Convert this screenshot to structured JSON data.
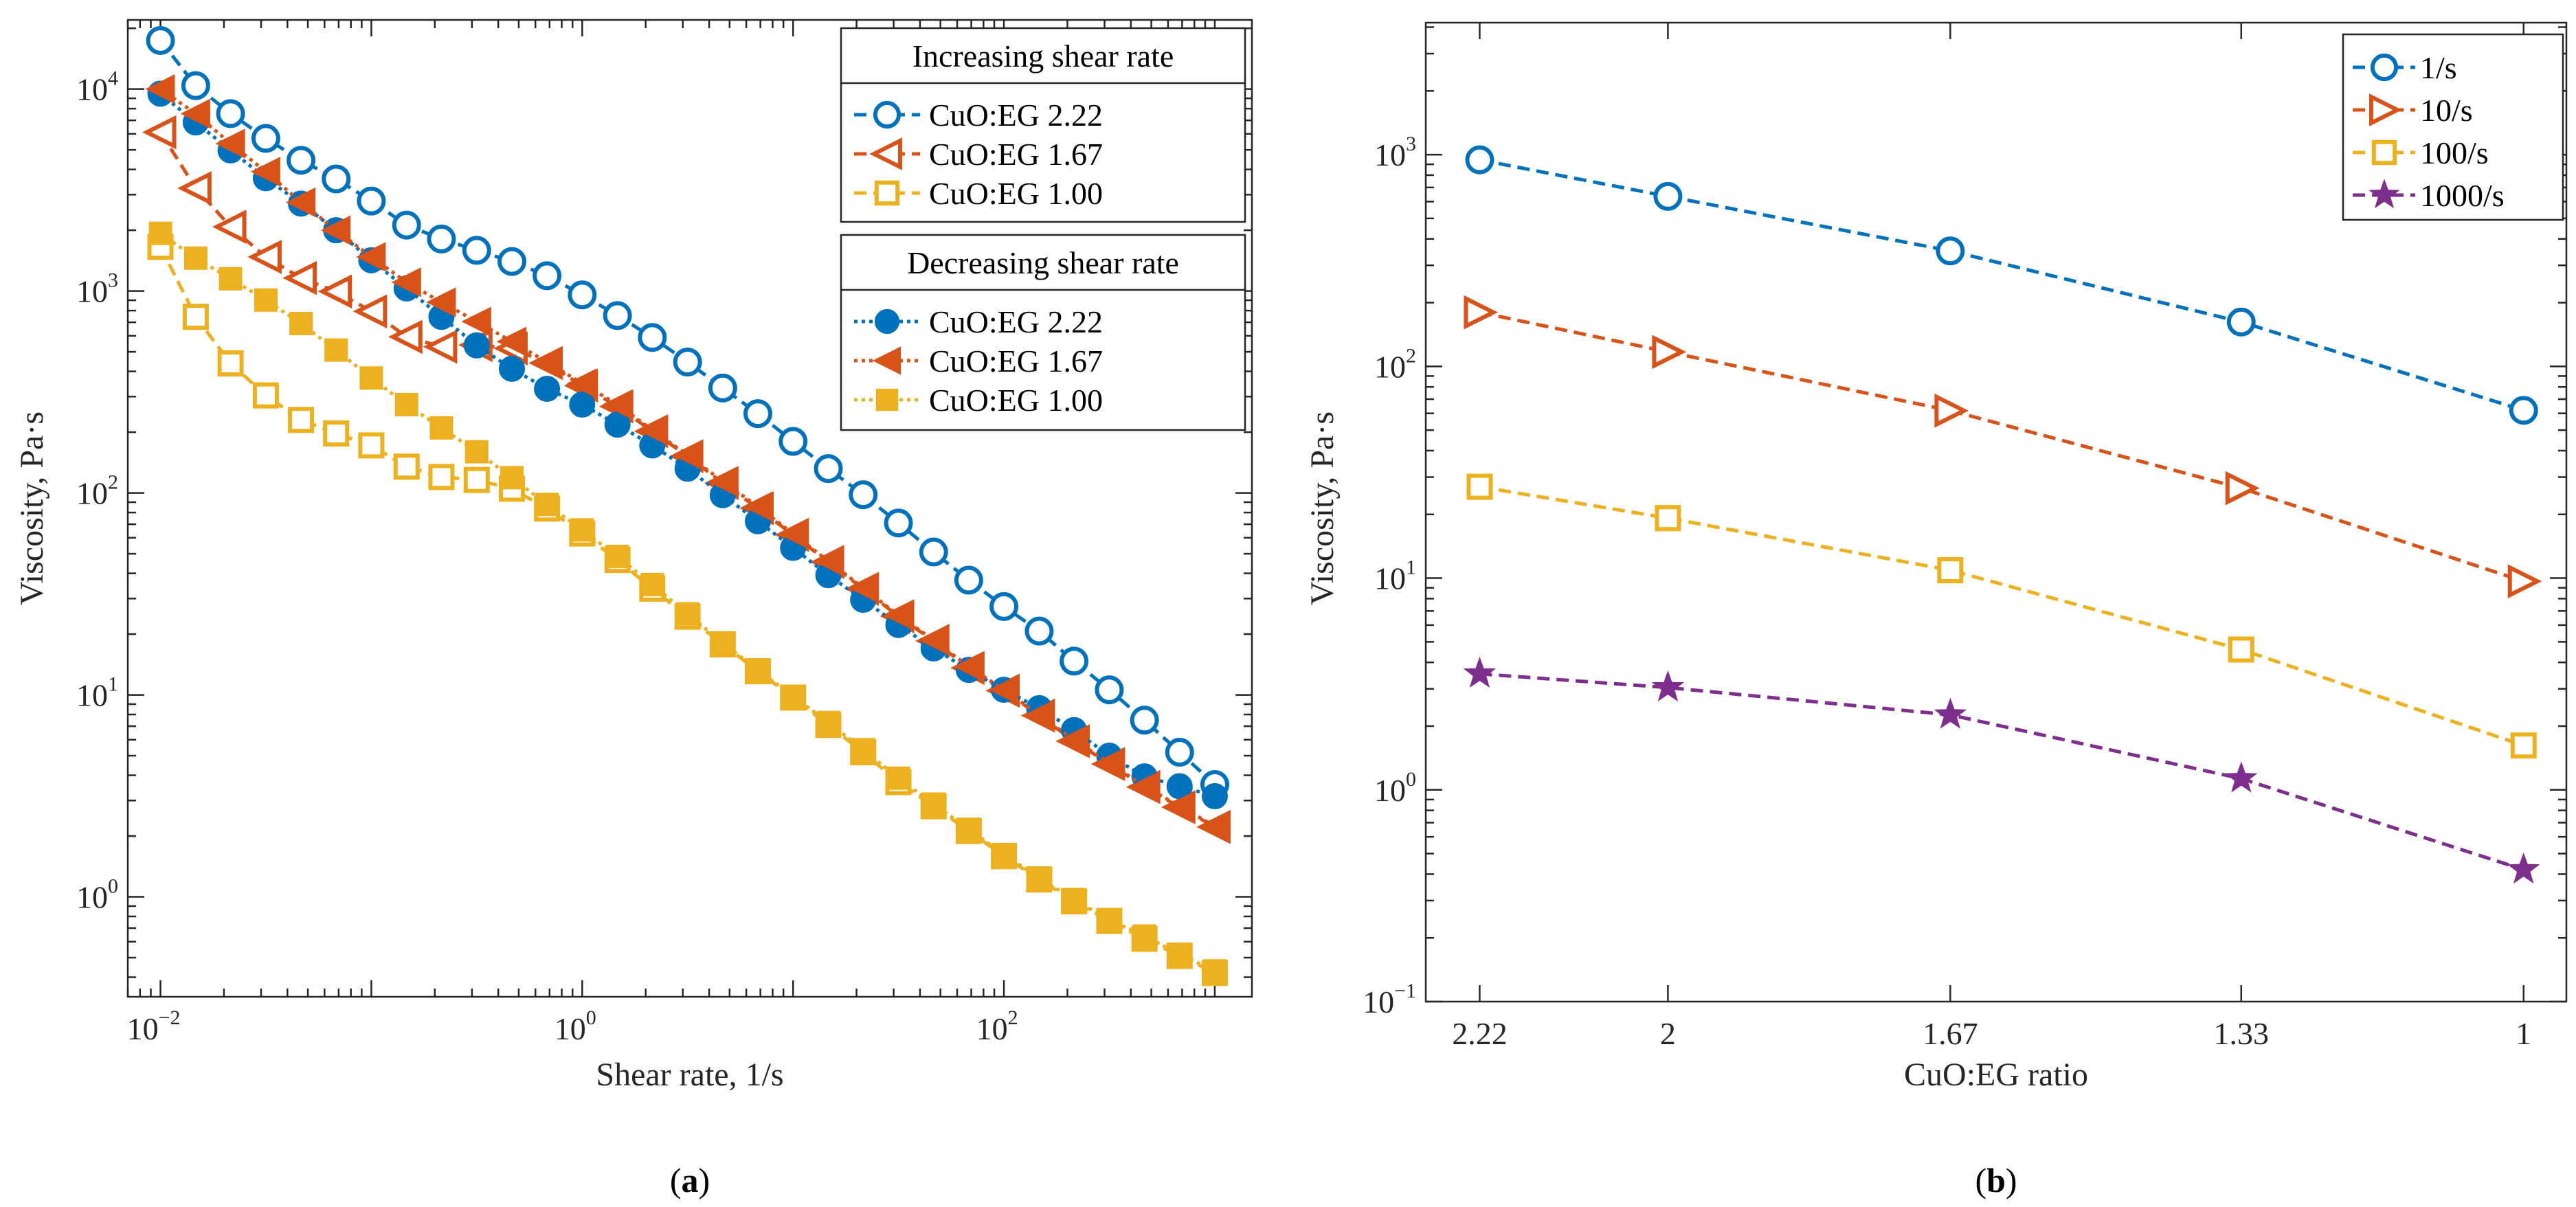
{
  "colors": {
    "blue": "#0072BD",
    "orange": "#D95319",
    "yellow": "#EDB120",
    "purple": "#7E2F8E"
  },
  "chart_data": [
    {
      "type": "line",
      "panel_label": "(a)",
      "panel_letter": "a",
      "xlabel": "Shear rate, 1/s",
      "ylabel": "Viscosity, Pa·s",
      "xscale": "log",
      "yscale": "log",
      "xlim": [
        0.007,
        1500
      ],
      "ylim": [
        0.32,
        22000
      ],
      "xticks": [
        {
          "base": "10",
          "exp": "−2",
          "v": 0.01
        },
        {
          "base": "10",
          "exp": "0",
          "v": 1
        },
        {
          "base": "10",
          "exp": "2",
          "v": 100
        }
      ],
      "yticks": [
        {
          "base": "10",
          "exp": "0",
          "v": 1
        },
        {
          "base": "10",
          "exp": "1",
          "v": 10
        },
        {
          "base": "10",
          "exp": "2",
          "v": 100
        },
        {
          "base": "10",
          "exp": "3",
          "v": 1000
        },
        {
          "base": "10",
          "exp": "4",
          "v": 10000
        }
      ],
      "x": [
        0.01,
        0.0147,
        0.0215,
        0.0316,
        0.0464,
        0.0681,
        0.1,
        0.147,
        0.215,
        0.316,
        0.464,
        0.681,
        1,
        1.47,
        2.15,
        3.16,
        4.64,
        6.81,
        10,
        14.7,
        21.5,
        31.6,
        46.4,
        68.1,
        100,
        147,
        215,
        316,
        464,
        681,
        1000
      ],
      "legend_groups": [
        {
          "title": "Increasing shear rate",
          "series_idx": [
            0,
            1,
            2
          ]
        },
        {
          "title": "Decreasing shear rate",
          "series_idx": [
            3,
            4,
            5
          ]
        }
      ],
      "series": [
        {
          "name": "CuO:EG 2.22",
          "color": "blue",
          "marker": "circle-open",
          "line": "dashed",
          "values": [
            17400,
            10400,
            7560,
            5700,
            4440,
            3590,
            2790,
            2120,
            1810,
            1590,
            1400,
            1190,
            957,
            756,
            589,
            445,
            331,
            247,
            180,
            132,
            98,
            71,
            51,
            37,
            27.4,
            20.7,
            14.7,
            10.6,
            7.5,
            5.2,
            3.6
          ]
        },
        {
          "name": "CuO:EG 1.67",
          "color": "orange",
          "marker": "triangle-left-open",
          "line": "dashed",
          "values": [
            6110,
            3230,
            2080,
            1475,
            1160,
            995,
            793,
            593,
            530,
            540,
            520,
            440,
            340,
            268,
            202,
            152,
            112,
            84,
            62,
            45.5,
            33.5,
            24.5,
            18.5,
            13.6,
            10.5,
            7.9,
            5.9,
            4.55,
            3.5,
            2.78,
            2.22
          ]
        },
        {
          "name": "CuO:EG 1.00",
          "color": "yellow",
          "marker": "square-open",
          "line": "dashed",
          "values": [
            1655,
            745,
            438,
            304,
            230,
            197,
            172,
            135,
            120,
            116,
            105,
            83.7,
            63,
            46.6,
            33.6,
            24.4,
            17.8,
            13.1,
            9.7,
            7.1,
            5.2,
            3.7,
            2.81,
            2.12,
            1.59,
            1.22,
            0.95,
            0.76,
            0.62,
            0.51,
            0.42
          ]
        },
        {
          "name": "CuO:EG 2.22",
          "color": "blue",
          "marker": "circle-filled",
          "line": "dotted",
          "values": [
            9490,
            6840,
            4970,
            3620,
            2710,
            2000,
            1420,
            1030,
            745,
            538,
            412,
            328,
            274,
            218,
            172,
            132,
            97.5,
            72.5,
            53.5,
            39.2,
            29.6,
            22.2,
            17,
            13.3,
            10.6,
            8.6,
            6.7,
            5.0,
            3.95,
            3.53,
            3.15
          ]
        },
        {
          "name": "CuO:EG 1.67",
          "color": "orange",
          "marker": "triangle-left-filled",
          "line": "dotted",
          "values": [
            10000,
            7550,
            5370,
            3900,
            2750,
            2000,
            1475,
            1105,
            880,
            706,
            562,
            445,
            349,
            274,
            205,
            154,
            114,
            85.7,
            62.8,
            46,
            33.9,
            24.8,
            18.7,
            13.8,
            10.6,
            7.96,
            6.0,
            4.6,
            3.53,
            2.81,
            2.24
          ]
        },
        {
          "name": "CuO:EG 1.00",
          "color": "yellow",
          "marker": "square-filled",
          "line": "dotted",
          "values": [
            1930,
            1455,
            1150,
            902,
            690,
            510,
            371,
            274,
            210,
            160,
            119,
            87.7,
            65.6,
            48.5,
            35.2,
            25.2,
            18.1,
            13.3,
            9.85,
            7.3,
            5.36,
            3.87,
            2.88,
            2.16,
            1.62,
            1.24,
            0.97,
            0.77,
            0.64,
            0.52,
            0.43
          ]
        }
      ]
    },
    {
      "type": "line",
      "panel_label": "(b)",
      "panel_letter": "b",
      "xlabel": "CuO:EG ratio",
      "ylabel": "Viscosity, Pa·s",
      "xscale": "linear-reversed",
      "yscale": "log",
      "xlim": [
        2.283,
        0.95
      ],
      "ylim": [
        0.1,
        4200
      ],
      "xticks": [
        {
          "label": "2.22",
          "v": 2.22
        },
        {
          "label": "2",
          "v": 2
        },
        {
          "label": "1.67",
          "v": 1.67
        },
        {
          "label": "1.33",
          "v": 1.33
        },
        {
          "label": "1",
          "v": 1
        }
      ],
      "yticks": [
        {
          "base": "10",
          "exp": "−1",
          "v": 0.1
        },
        {
          "base": "10",
          "exp": "0",
          "v": 1
        },
        {
          "base": "10",
          "exp": "1",
          "v": 10
        },
        {
          "base": "10",
          "exp": "2",
          "v": 100
        },
        {
          "base": "10",
          "exp": "3",
          "v": 1000
        }
      ],
      "x": [
        2.22,
        2,
        1.67,
        1.33,
        1
      ],
      "series": [
        {
          "name": "1/s",
          "color": "blue",
          "marker": "circle-open",
          "line": "dashed",
          "values": [
            945,
            635,
            351,
            162,
            62
          ]
        },
        {
          "name": "10/s",
          "color": "orange",
          "marker": "triangle-right-open",
          "line": "dashed",
          "values": [
            180,
            117,
            61.8,
            26.6,
            9.66
          ]
        },
        {
          "name": "100/s",
          "color": "yellow",
          "marker": "square-open",
          "line": "dashed",
          "values": [
            27,
            19.2,
            10.9,
            4.6,
            1.62
          ]
        },
        {
          "name": "1000/s",
          "color": "purple",
          "marker": "star-filled",
          "line": "dashed",
          "values": [
            3.53,
            3.04,
            2.26,
            1.13,
            0.42
          ]
        }
      ]
    }
  ]
}
